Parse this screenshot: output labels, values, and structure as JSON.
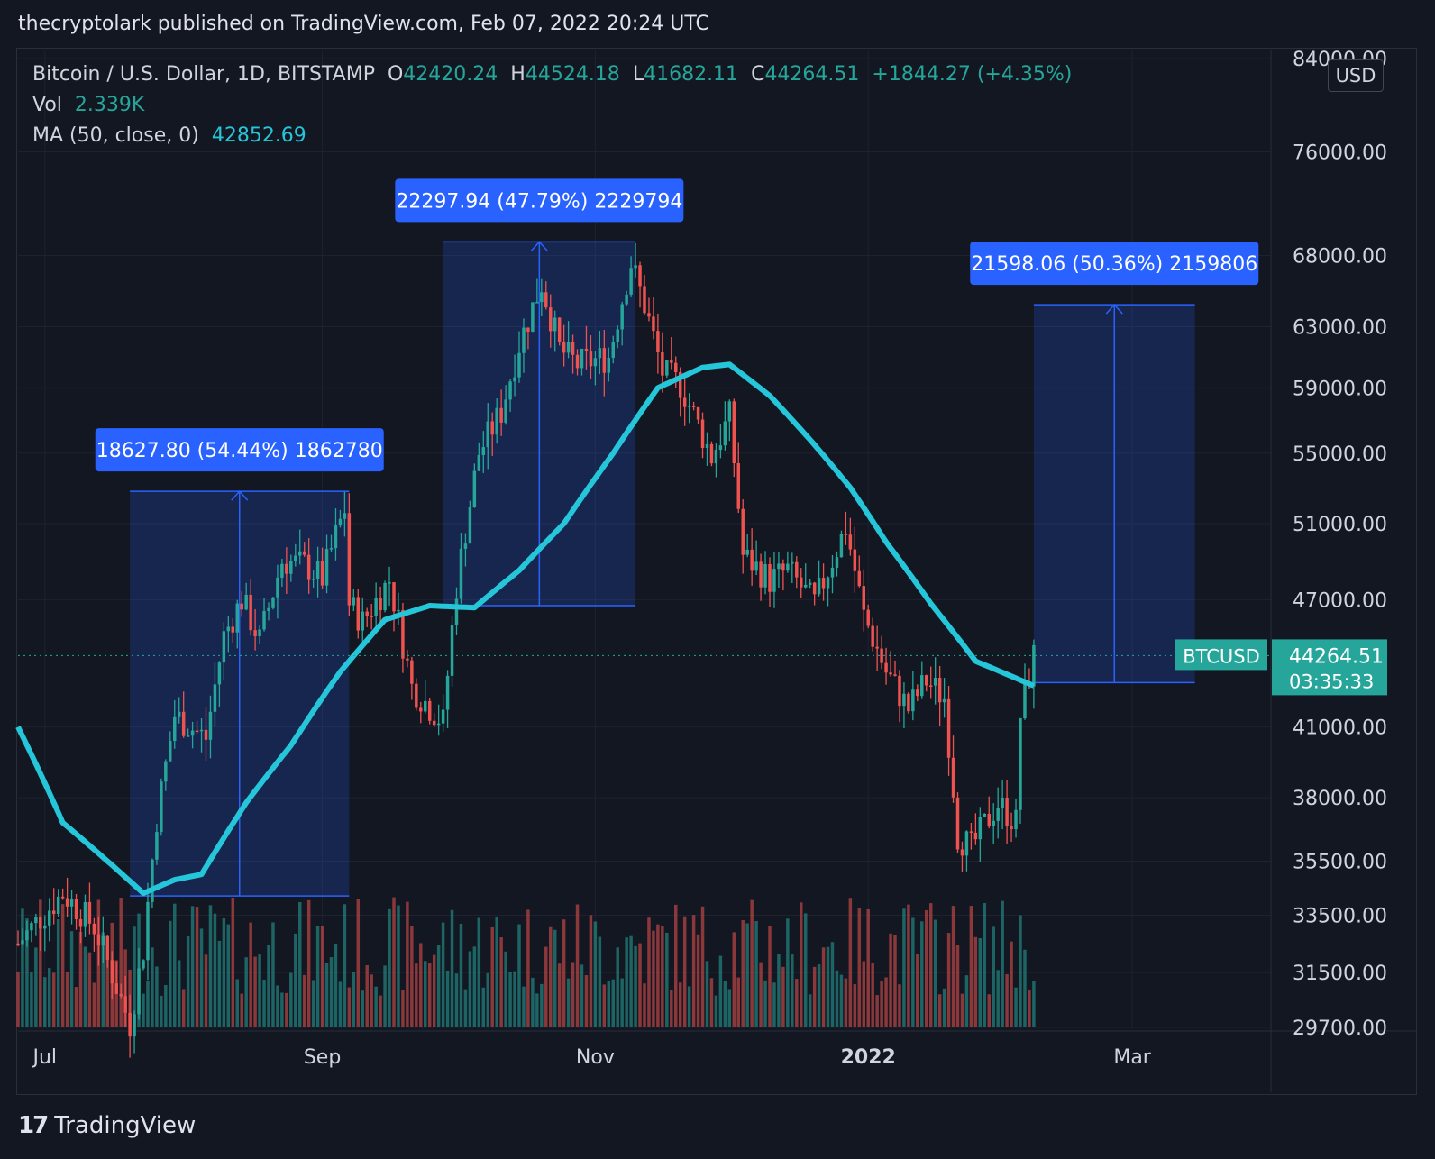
{
  "header": {
    "published": "thecryptolark published on TradingView.com, Feb 07, 2022 20:24 UTC"
  },
  "legend": {
    "symbol": "Bitcoin / U.S. Dollar, 1D, BITSTAMP",
    "o_label": "O",
    "o": "42420.24",
    "h_label": "H",
    "h": "44524.18",
    "l_label": "L",
    "l": "41682.11",
    "c_label": "C",
    "c": "44264.51",
    "change": "+1844.27 (+4.35%)",
    "vol_label": "Vol",
    "vol": "2.339K",
    "ma_label": "MA (50, close, 0)",
    "ma": "42852.69"
  },
  "axis_unit": "USD",
  "price_tag": {
    "symbol": "BTCUSD",
    "price": "44264.51",
    "countdown": "03:35:33"
  },
  "brand": {
    "name": "TradingView"
  },
  "colors": {
    "up": "#26a69a",
    "down": "#ef5350",
    "ma": "#26c6da",
    "measure": "#2962ff",
    "background": "#131722"
  },
  "chart_data": {
    "type": "candlestick",
    "y_ticks": [
      "84000.00",
      "76000.00",
      "68000.00",
      "63000.00",
      "59000.00",
      "55000.00",
      "51000.00",
      "47000.00",
      "41000.00",
      "38000.00",
      "35500.00",
      "33500.00",
      "31500.00",
      "29700.00"
    ],
    "y_scale": "log",
    "ylim": [
      29700,
      84000
    ],
    "x_ticks": [
      {
        "label": "Jul",
        "date": "2021-07-01"
      },
      {
        "label": "Sep",
        "date": "2021-09-01"
      },
      {
        "label": "Nov",
        "date": "2021-11-01"
      },
      {
        "label": "2022",
        "date": "2022-01-01"
      },
      {
        "label": "Mar",
        "date": "2022-03-01"
      }
    ],
    "xlim": [
      "2021-06-25",
      "2022-04-01"
    ],
    "price_path": [
      [
        "2021-06-25",
        32500
      ],
      [
        "2021-07-05",
        34300
      ],
      [
        "2021-07-12",
        33100
      ],
      [
        "2021-07-20",
        29800
      ],
      [
        "2021-07-23",
        32300
      ],
      [
        "2021-07-26",
        37200
      ],
      [
        "2021-07-30",
        41500
      ],
      [
        "2021-08-06",
        40500
      ],
      [
        "2021-08-10",
        45200
      ],
      [
        "2021-08-14",
        47000
      ],
      [
        "2021-08-18",
        45000
      ],
      [
        "2021-08-23",
        49000
      ],
      [
        "2021-08-28",
        48800
      ],
      [
        "2021-09-01",
        48100
      ],
      [
        "2021-09-06",
        51800
      ],
      [
        "2021-09-07",
        46800
      ],
      [
        "2021-09-10",
        45900
      ],
      [
        "2021-09-16",
        48000
      ],
      [
        "2021-09-21",
        42800
      ],
      [
        "2021-09-28",
        41200
      ],
      [
        "2021-10-01",
        47700
      ],
      [
        "2021-10-06",
        55000
      ],
      [
        "2021-10-11",
        57500
      ],
      [
        "2021-10-15",
        61800
      ],
      [
        "2021-10-20",
        66000
      ],
      [
        "2021-10-24",
        61500
      ],
      [
        "2021-10-28",
        60500
      ],
      [
        "2021-11-04",
        61000
      ],
      [
        "2021-11-09",
        67500
      ],
      [
        "2021-11-12",
        64500
      ],
      [
        "2021-11-16",
        60000
      ],
      [
        "2021-11-20",
        59200
      ],
      [
        "2021-11-27",
        54800
      ],
      [
        "2021-12-01",
        57200
      ],
      [
        "2021-12-04",
        49300
      ],
      [
        "2021-12-10",
        48000
      ],
      [
        "2021-12-14",
        48500
      ],
      [
        "2021-12-20",
        46800
      ],
      [
        "2021-12-27",
        50800
      ],
      [
        "2021-12-31",
        46200
      ],
      [
        "2022-01-05",
        43500
      ],
      [
        "2022-01-10",
        41800
      ],
      [
        "2022-01-14",
        43100
      ],
      [
        "2022-01-18",
        42300
      ],
      [
        "2022-01-21",
        36500
      ],
      [
        "2022-01-24",
        36000
      ],
      [
        "2022-01-30",
        37800
      ],
      [
        "2022-02-03",
        37000
      ],
      [
        "2022-02-04",
        41500
      ],
      [
        "2022-02-07",
        44264.51
      ]
    ],
    "ma_path": [
      [
        "2021-06-25",
        41000
      ],
      [
        "2021-07-05",
        37000
      ],
      [
        "2021-07-15",
        35500
      ],
      [
        "2021-07-23",
        34300
      ],
      [
        "2021-07-30",
        34800
      ],
      [
        "2021-08-05",
        35000
      ],
      [
        "2021-08-15",
        37800
      ],
      [
        "2021-08-25",
        40200
      ],
      [
        "2021-09-05",
        43500
      ],
      [
        "2021-09-15",
        46000
      ],
      [
        "2021-09-25",
        46700
      ],
      [
        "2021-10-05",
        46600
      ],
      [
        "2021-10-15",
        48500
      ],
      [
        "2021-10-25",
        51000
      ],
      [
        "2021-11-05",
        55000
      ],
      [
        "2021-11-15",
        59000
      ],
      [
        "2021-11-25",
        60300
      ],
      [
        "2021-12-01",
        60500
      ],
      [
        "2021-12-10",
        58500
      ],
      [
        "2021-12-20",
        55500
      ],
      [
        "2021-12-28",
        53000
      ],
      [
        "2022-01-05",
        50000
      ],
      [
        "2022-01-15",
        46800
      ],
      [
        "2022-01-25",
        44000
      ],
      [
        "2022-02-07",
        42852.69
      ]
    ],
    "measurements": [
      {
        "label": "18627.80 (54.44%) 1862780",
        "from": "2021-07-20",
        "to": "2021-09-07",
        "low": 34200,
        "high": 52800
      },
      {
        "label": "22297.94 (47.79%) 2229794",
        "from": "2021-09-28",
        "to": "2021-11-10",
        "low": 46700,
        "high": 69000
      },
      {
        "label": "21598.06 (50.36%) 2159806",
        "from": "2022-02-07",
        "to": "2022-03-15",
        "low": 43000,
        "high": 64500
      }
    ]
  }
}
